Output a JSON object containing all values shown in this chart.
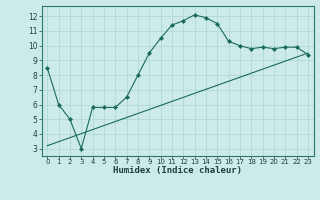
{
  "xlabel": "Humidex (Indice chaleur)",
  "bg_color": "#cceaea",
  "grid_color": "#b0d8d8",
  "line_color": "#1a6b5a",
  "xlim": [
    -0.5,
    23.5
  ],
  "ylim": [
    2.5,
    12.7
  ],
  "xticks": [
    0,
    1,
    2,
    3,
    4,
    5,
    6,
    7,
    8,
    9,
    10,
    11,
    12,
    13,
    14,
    15,
    16,
    17,
    18,
    19,
    20,
    21,
    22,
    23
  ],
  "yticks": [
    3,
    4,
    5,
    6,
    7,
    8,
    9,
    10,
    11,
    12
  ],
  "curve1_x": [
    0,
    1,
    2,
    3,
    4,
    5,
    6,
    7,
    8,
    9,
    10,
    11,
    12,
    13,
    14,
    15,
    16,
    17,
    18,
    19,
    20,
    21,
    22,
    23
  ],
  "curve1_y": [
    8.5,
    6.0,
    5.0,
    3.0,
    5.8,
    5.8,
    5.8,
    6.5,
    8.0,
    9.5,
    10.5,
    11.4,
    11.7,
    12.1,
    11.9,
    11.5,
    10.3,
    10.0,
    9.8,
    9.9,
    9.8,
    9.9,
    9.9,
    9.4
  ],
  "curve2_x": [
    0,
    23
  ],
  "curve2_y": [
    3.2,
    9.5
  ]
}
